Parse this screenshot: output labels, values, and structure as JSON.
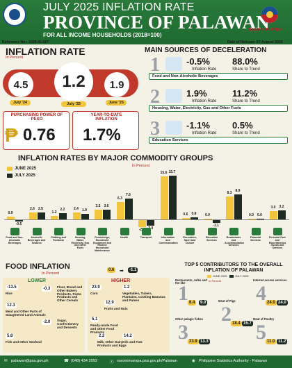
{
  "header": {
    "title": "JULY 2025 INFLATION RATE",
    "province": "PROVINCE OF PALAWAN",
    "subtitle": "FOR ALL INCOME HOUSEHOLDS (2018=100)",
    "seal_text": "BAGONG PILIPINAS",
    "reference": "Reference No.: 2025-IG-027",
    "release": "Date of Release: 07 August 2025"
  },
  "inflation": {
    "title": "INFLATION RATE",
    "unit": "In Percent",
    "jul24_value": "4.5",
    "jul24_label": "July '24",
    "jul25_value": "1.2",
    "jul25_label": "July '25",
    "jun25_value": "1.9",
    "jun25_label": "June '25",
    "pp_label": "PURCHASING POWER OF  PESO",
    "pp_value": "0.76",
    "ytd_label": "YEAR-TO-DATE INFLATION",
    "ytd_value": "1.7%",
    "peso_sign": "₱"
  },
  "deceleration": {
    "title": "MAIN SOURCES OF DECELERATION",
    "items": [
      {
        "num": "1",
        "rate": "-0.5%",
        "rate_label": "Inflation Rate",
        "share": "88.0%",
        "share_label": "Share to Trend",
        "name": "Food and Non-Alcoholic Beverages"
      },
      {
        "num": "2",
        "rate": "1.9%",
        "rate_label": "Inflation Rate",
        "share": "11.2%",
        "share_label": "Share to Trend",
        "name": "Housing, Water, Electricity, Gas and Other Fuels"
      },
      {
        "num": "3",
        "rate": "-1.1%",
        "rate_label": "Inflation Rate",
        "share": "0.5%",
        "share_label": "Share to Trend",
        "name": "Education Services"
      }
    ]
  },
  "chart_data": {
    "type": "bar",
    "title": "INFLATION RATES BY MAJOR COMMODITY GROUPS",
    "unit": "In Percent",
    "series": [
      {
        "name": "JUNE 2025",
        "color": "#f2c53d",
        "values": [
          0.9,
          2.6,
          1.2,
          2.4,
          3.5,
          6.3,
          -2.6,
          15.6,
          0.6,
          0.0,
          8.3,
          0.0,
          3.0
        ]
      },
      {
        "name": "JULY 2025",
        "color": "#1f2a22",
        "values": [
          -0.5,
          2.5,
          2.2,
          1.9,
          3.6,
          7.6,
          -2.0,
          15.7,
          0.8,
          -1.1,
          8.9,
          0.0,
          3.2
        ]
      }
    ],
    "categories": [
      "Food and Non-Alcoholic Beverages",
      "Alcoholic Beverages and Tobacco",
      "Clothing and Footwear",
      "Housing, Water, Electricity, Gas and Other Fuels",
      "Furnishings, Household Equipment and Routine Household Maintenance",
      "Health",
      "Transport",
      "Information and Communication",
      "Recreation, Sport and Culture",
      "Education Services",
      "Restaurants and Accommodation Services",
      "Financial Services",
      "Personal Care and Miscellaneous Goods and Services"
    ],
    "labels_june": [
      "0.9",
      "2.6",
      "1.2",
      "2.4",
      "3.5",
      "6.3",
      "-2.6",
      "15.6",
      "0.6",
      "0.0",
      "8.3",
      "0.0",
      "3.0"
    ],
    "labels_july": [
      "-0.5",
      "2.5",
      "2.2",
      "1.9",
      "3.6",
      "7.6",
      "-2.0",
      "15.7",
      "0.8",
      "-1.1",
      "8.9",
      "0.0",
      "3.2"
    ],
    "legend": "top-left"
  },
  "food": {
    "title": "FOOD INFLATION",
    "unit": "In Percent",
    "jun": "0.6",
    "jul": "-1.1",
    "lower": "LOWER",
    "higher": "HIGHER",
    "lower_items": [
      {
        "v": "-13.5",
        "n": "Rice"
      },
      {
        "v": "-0.3",
        "n": "Flour, Bread and Other Bakery Products, Pasta Products and Other Cereals"
      },
      {
        "v": "12.3",
        "n": "Meat and Other Parts of Slaughtered Land Animals"
      },
      {
        "v": "-2.0",
        "n": "Sugar, Confectionery and Desserts"
      },
      {
        "v": "5.8",
        "n": "Fish and Other Seafood"
      }
    ],
    "higher_items": [
      {
        "v": "23.9",
        "n": "Corn"
      },
      {
        "v": "1.2",
        "n": "Vegetables, Tubers, Plantains, Cooking Bananas and Pulses"
      },
      {
        "v": "12.9",
        "n": "Fruits and Nuts"
      },
      {
        "v": "5.1",
        "n": "Ready-made Food and Other Food Products"
      },
      {
        "v": "2.2",
        "n": "Milk, Other Dairy Products and Eggs"
      },
      {
        "v": "14.2",
        "n": "Oils and Fats"
      }
    ]
  },
  "top5": {
    "title": "TOP 5 CONTRIBUTORS TO THE OVERALL INFLATION OF PALAWAN",
    "legend_jun": "JUNE 2025",
    "legend_jul": "JULY 2025",
    "unit": "In Percent",
    "items": [
      {
        "rank": "1",
        "name": "Restaurants, cafés and the like",
        "jun": "8.4",
        "jul": "9.0"
      },
      {
        "rank": "2",
        "name": "Meat of Pigs",
        "jun": "18.4",
        "jul": "15.7"
      },
      {
        "rank": "3",
        "name": "Other pelagic fishes",
        "jun": "23.9",
        "jul": "13.3"
      },
      {
        "rank": "4",
        "name": "Internet access services",
        "jun": "24.0",
        "jul": "24.0"
      },
      {
        "rank": "5",
        "name": "Meat of Poultry",
        "jun": "11.0",
        "jul": "11.2"
      }
    ]
  },
  "footer": {
    "email": "palawan@psa.gov.ph",
    "phone": "(048) 434 2092",
    "fb": "rssomimaropa.psa.gov.ph/Palawan",
    "office": "Philippine Statistics Authority - Palawan"
  }
}
